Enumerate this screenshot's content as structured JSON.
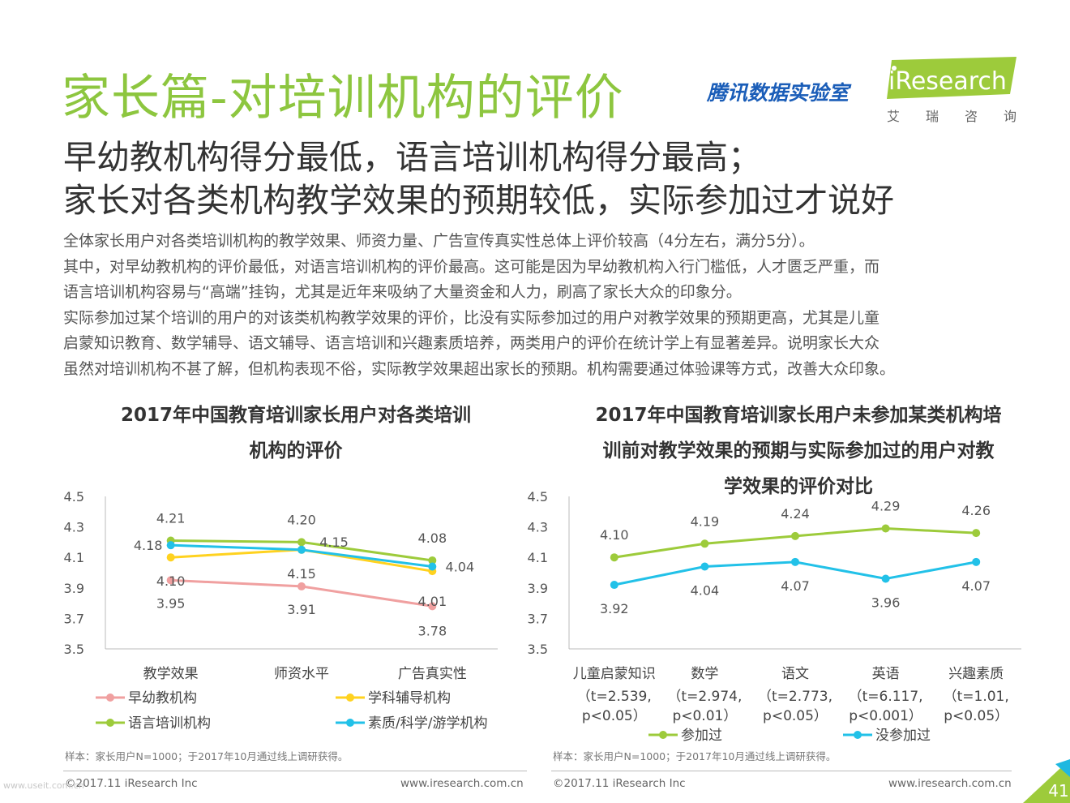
{
  "header": {
    "title": "家长篇-对培训机构的评价",
    "partner": "腾讯数据实验室",
    "logo_text": "iResearch",
    "logo_sub": [
      "艾",
      "瑞",
      "咨",
      "询"
    ]
  },
  "subtitle": {
    "line1": "早幼教机构得分最低，语言培训机构得分最高；",
    "line2": "家长对各类机构教学效果的预期较低，实际参加过才说好"
  },
  "body_lines": [
    "全体家长用户对各类培训机构的教学效果、师资力量、广告宣传真实性总体上评价较高（4分左右，满分5分）。",
    "其中，对早幼教机构的评价最低，对语言培训机构的评价最高。这可能是因为早幼教机构入行门槛低，人才匮乏严重，而",
    "语言培训机构容易与“高端”挂钩，尤其是近年来吸纳了大量资金和人力，刷高了家长大众的印象分。",
    "实际参加过某个培训的用户的对该类机构教学效果的评价，比没有实际参加过的用户对教学效果的预期更高，尤其是儿童",
    "启蒙知识教育、数学辅导、语文辅导、语言培训和兴趣素质培养，两类用户的评价在统计学上有显著差异。说明家长大众",
    "虽然对培训机构不甚了解，但机构表现不俗，实际教学效果超出家长的预期。机构需要通过体验课等方式，改善大众印象。"
  ],
  "chart_data": [
    {
      "type": "line",
      "title_lines": [
        "2017年中国教育培训家长用户对各类培训",
        "机构的评价"
      ],
      "categories": [
        "教学效果",
        "师资水平",
        "广告真实性"
      ],
      "ylim": [
        3.5,
        4.5
      ],
      "yticks": [
        "3.5",
        "3.7",
        "3.9",
        "4.1",
        "4.3",
        "4.5"
      ],
      "grid": false,
      "legend_position": "bottom",
      "series": [
        {
          "name": "早幼教机构",
          "color": "#f0a0a0",
          "values": [
            3.95,
            3.91,
            3.78
          ],
          "labels": [
            "3.95",
            "3.91",
            "3.78"
          ]
        },
        {
          "name": "学科辅导机构",
          "color": "#ffd21f",
          "values": [
            4.1,
            4.15,
            4.01
          ],
          "labels": [
            "4.10",
            "4.15",
            "4.01"
          ]
        },
        {
          "name": "语言培训机构",
          "color": "#9dcb3b",
          "values": [
            4.21,
            4.2,
            4.08
          ],
          "labels": [
            "4.21",
            "4.20",
            "4.08"
          ]
        },
        {
          "name": "素质/科学/游学机构",
          "color": "#22c1e8",
          "values": [
            4.18,
            4.15,
            4.04
          ],
          "labels": [
            "4.18",
            "4.15",
            "4.04"
          ]
        }
      ]
    },
    {
      "type": "line",
      "title_lines": [
        "2017年中国教育培训家长用户未参加某类机构培",
        "训前对教学效果的预期与实际参加过的用户对教",
        "学效果的评价对比"
      ],
      "categories": [
        "儿童启蒙知识",
        "数学",
        "语文",
        "英语",
        "兴趣素质"
      ],
      "category_stats": [
        [
          "（t=2.539,",
          "p<0.05）"
        ],
        [
          "（t=2.974,",
          "p<0.01）"
        ],
        [
          "（t=2.773,",
          "p<0.05）"
        ],
        [
          "（t=6.117,",
          "p<0.001）"
        ],
        [
          "（t=1.01,",
          "p<0.05）"
        ]
      ],
      "ylim": [
        3.5,
        4.5
      ],
      "yticks": [
        "3.5",
        "3.7",
        "3.9",
        "4.1",
        "4.3",
        "4.5"
      ],
      "grid": false,
      "legend_position": "bottom",
      "series": [
        {
          "name": "参加过",
          "color": "#9dcb3b",
          "values": [
            4.1,
            4.19,
            4.24,
            4.29,
            4.26
          ],
          "labels": [
            "4.10",
            "4.19",
            "4.24",
            "4.29",
            "4.26"
          ]
        },
        {
          "name": "没参加过",
          "color": "#22c1e8",
          "values": [
            3.92,
            4.04,
            4.07,
            3.96,
            4.07
          ],
          "labels": [
            "3.92",
            "4.04",
            "4.07",
            "3.96",
            "4.07"
          ]
        }
      ]
    }
  ],
  "notes": {
    "left": "样本：家长用户N=1000；于2017年10月通过线上调研获得。",
    "right": "样本：家长用户N=1000；于2017年10月通过线上调研获得。"
  },
  "footer": {
    "left_copyright": "©2017.11 iResearch Inc",
    "left_url": "www.iresearch.com.cn",
    "right_copyright": "©2017.11 iResearch Inc",
    "right_url": "www.iresearch.com.cn",
    "watermark": "www.useit.com.cn",
    "page_number": "41"
  },
  "colors": {
    "title_green": "#8dc63f",
    "accent_blue": "#1a5db8"
  }
}
